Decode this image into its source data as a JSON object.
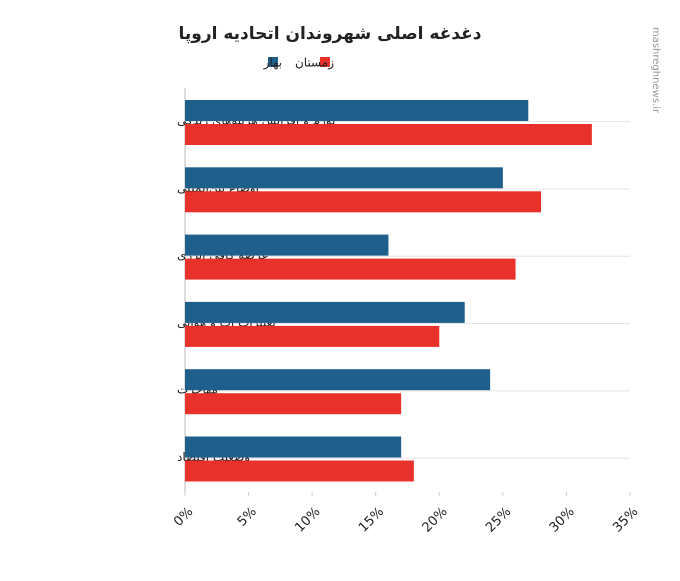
{
  "chart_data": {
    "type": "hbar",
    "title": "دغدغه اصلی شهروندان اتحادیه اروپا",
    "watermark": "mashreghnews.ir",
    "categories": [
      "تورم و افزایش هزینه‌های زندگی",
      "اوضاع بین‌المللی",
      "عرضه کافی انرژی",
      "تغییرات آب و هوایی",
      "مهاجرت",
      "وضعیت اقتصاد"
    ],
    "series": [
      {
        "name": "بهار",
        "color": "#1f5f8b",
        "values": [
          27,
          25,
          16,
          22,
          24,
          17
        ]
      },
      {
        "name": "زمستان",
        "color": "#e8312a",
        "values": [
          32,
          28,
          26,
          20,
          17,
          18
        ]
      }
    ],
    "xlim": [
      0,
      35
    ],
    "xticks": [
      {
        "value": 0,
        "label": "0%"
      },
      {
        "value": 5,
        "label": "5%"
      },
      {
        "value": 10,
        "label": "10%"
      },
      {
        "value": 15,
        "label": "15%"
      },
      {
        "value": 20,
        "label": "20%"
      },
      {
        "value": 25,
        "label": "25%"
      },
      {
        "value": 30,
        "label": "30%"
      },
      {
        "value": 35,
        "label": "35%"
      }
    ]
  }
}
